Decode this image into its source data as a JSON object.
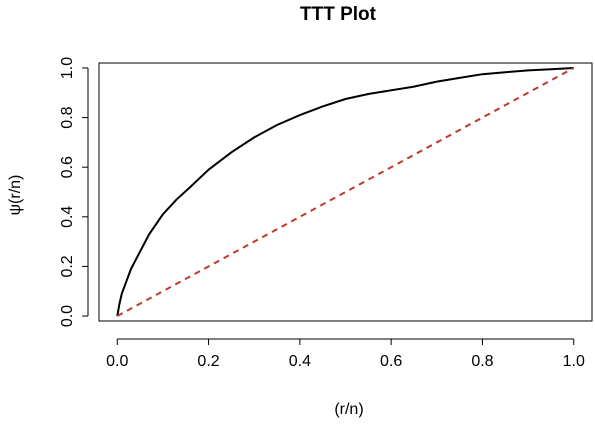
{
  "chart_data": {
    "type": "line",
    "title": "TTT Plot",
    "xlabel": "(r/n)",
    "ylabel": "ψ(r/n)",
    "xlim": [
      -0.04,
      1.04
    ],
    "ylim": [
      -0.02,
      1.02
    ],
    "xticks": [
      "0.0",
      "0.2",
      "0.4",
      "0.6",
      "0.8",
      "1.0"
    ],
    "yticks": [
      "0.0",
      "0.2",
      "0.4",
      "0.6",
      "0.8",
      "1.0"
    ],
    "grid": false,
    "series": [
      {
        "style": "solid",
        "color": "#000000",
        "x": [
          0.0,
          0.005,
          0.01,
          0.02,
          0.03,
          0.05,
          0.07,
          0.1,
          0.13,
          0.16,
          0.2,
          0.25,
          0.3,
          0.35,
          0.4,
          0.45,
          0.5,
          0.55,
          0.6,
          0.65,
          0.7,
          0.75,
          0.8,
          0.85,
          0.9,
          0.95,
          1.0
        ],
        "y": [
          0.0,
          0.05,
          0.09,
          0.14,
          0.19,
          0.26,
          0.33,
          0.41,
          0.47,
          0.52,
          0.59,
          0.66,
          0.72,
          0.77,
          0.81,
          0.845,
          0.875,
          0.895,
          0.91,
          0.925,
          0.945,
          0.96,
          0.975,
          0.983,
          0.99,
          0.995,
          1.0
        ]
      },
      {
        "style": "dashed",
        "color": "#c0392b",
        "x": [
          0.0,
          1.0
        ],
        "y": [
          0.0,
          1.0
        ]
      }
    ]
  }
}
